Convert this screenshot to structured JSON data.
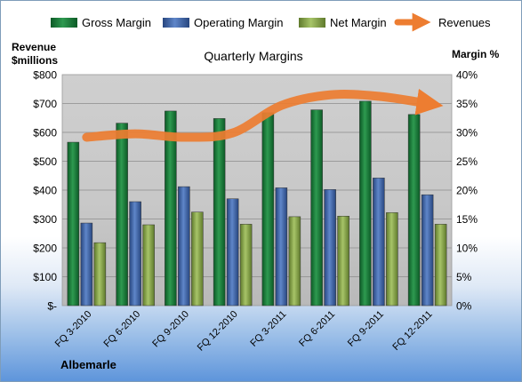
{
  "chart_data": {
    "type": "bar",
    "title": "Quarterly Margins",
    "company": "Albemarle",
    "left_axis_label": [
      "Revenue",
      "$millions"
    ],
    "right_axis_label": "Margin %",
    "categories": [
      "FQ 3-2010",
      "FQ 6-2010",
      "FQ 9-2010",
      "FQ 12-2010",
      "FQ 3-2011",
      "FQ 6-2011",
      "FQ 9-2011",
      "FQ 12-2011"
    ],
    "left_ticks": [
      "$-",
      "$100",
      "$200",
      "$300",
      "$400",
      "$500",
      "$600",
      "$700",
      "$800"
    ],
    "right_ticks": [
      "0%",
      "5%",
      "10%",
      "15%",
      "20%",
      "25%",
      "30%",
      "35%",
      "40%"
    ],
    "left_ylim": [
      0,
      800
    ],
    "right_ylim": [
      0,
      40
    ],
    "series": [
      {
        "name": "Gross Margin",
        "axis": "right",
        "values": [
          28.3,
          31.6,
          33.7,
          32.4,
          33.4,
          33.9,
          35.4,
          33.1
        ],
        "color": "#1e7b3c"
      },
      {
        "name": "Operating Margin",
        "axis": "right",
        "values": [
          14.3,
          18.0,
          20.6,
          18.5,
          20.4,
          20.1,
          22.1,
          19.2
        ],
        "color": "#3f67b0"
      },
      {
        "name": "Net Margin",
        "axis": "right",
        "values": [
          10.9,
          14.0,
          16.2,
          14.1,
          15.4,
          15.5,
          16.1,
          14.1
        ],
        "color": "#8aa84a"
      },
      {
        "name": "Revenues",
        "axis": "left",
        "type": "line",
        "values": [
          583,
          595,
          583,
          598,
          693,
          730,
          725,
          700
        ],
        "color": "#ed7d31"
      }
    ],
    "grid": true,
    "legend": "top"
  }
}
